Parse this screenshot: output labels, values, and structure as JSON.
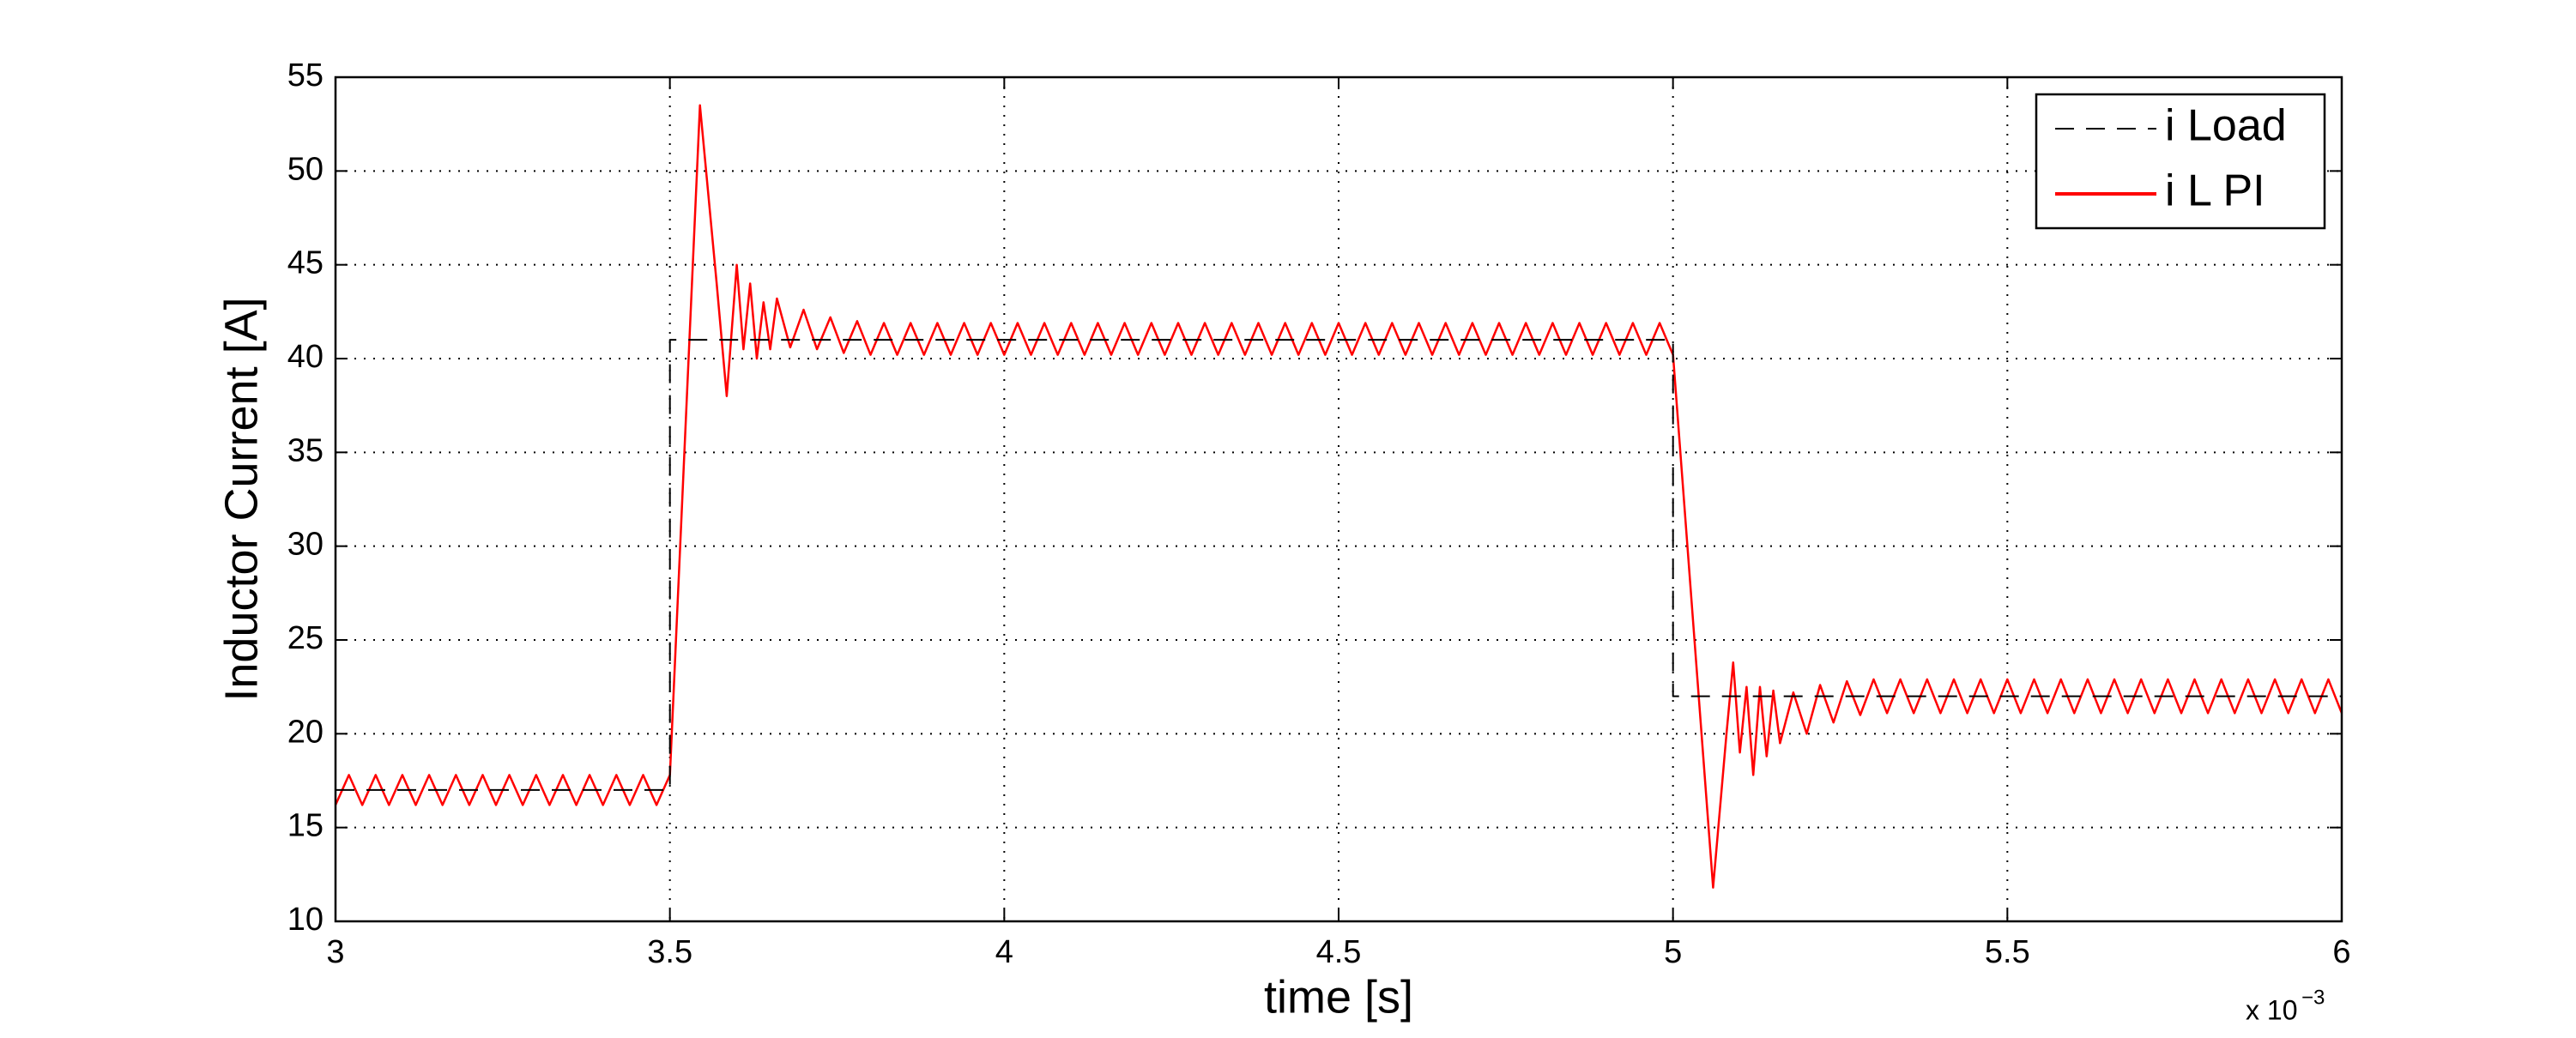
{
  "chart_data": {
    "type": "line",
    "xlabel": "time [s]",
    "ylabel": "Inductor Current [A]",
    "x_multiplier": "x 10",
    "x_multiplier_exponent": "−3",
    "xlim": [
      3,
      6
    ],
    "xticks": [
      3,
      3.5,
      4,
      4.5,
      5,
      5.5,
      6
    ],
    "ylim": [
      10,
      55
    ],
    "yticks": [
      10,
      15,
      20,
      25,
      30,
      35,
      40,
      45,
      50,
      55
    ],
    "grid": true,
    "legend": "upper right",
    "series": [
      {
        "name": "i Load",
        "color": "#000000",
        "line_style": "dashed",
        "x": [
          3,
          3.5,
          3.5,
          5,
          5,
          6
        ],
        "values": [
          17,
          17,
          41,
          41,
          22,
          22
        ]
      },
      {
        "name": "i L PI",
        "color": "#ff0000",
        "line_style": "solid",
        "x": [
          3,
          3.02,
          3.04,
          3.06,
          3.08,
          3.1,
          3.12,
          3.14,
          3.16,
          3.18,
          3.2,
          3.22,
          3.24,
          3.26,
          3.28,
          3.3,
          3.32,
          3.34,
          3.36,
          3.38,
          3.4,
          3.42,
          3.44,
          3.46,
          3.48,
          3.5,
          3.545,
          3.57,
          3.585,
          3.6,
          3.61,
          3.62,
          3.63,
          3.64,
          3.65,
          3.66,
          3.68,
          3.7,
          3.72,
          3.74,
          3.76,
          3.78,
          3.8,
          3.82,
          3.84,
          3.86,
          3.88,
          3.9,
          3.92,
          3.94,
          3.96,
          3.98,
          4,
          4.02,
          4.04,
          4.06,
          4.08,
          4.1,
          4.12,
          4.14,
          4.16,
          4.18,
          4.2,
          4.22,
          4.24,
          4.26,
          4.28,
          4.3,
          4.32,
          4.34,
          4.36,
          4.38,
          4.4,
          4.42,
          4.44,
          4.46,
          4.48,
          4.5,
          4.52,
          4.54,
          4.56,
          4.58,
          4.6,
          4.62,
          4.64,
          4.66,
          4.68,
          4.7,
          4.72,
          4.74,
          4.76,
          4.78,
          4.8,
          4.82,
          4.84,
          4.86,
          4.88,
          4.9,
          4.92,
          4.94,
          4.96,
          4.98,
          5,
          5.06,
          5.08,
          5.09,
          5.1,
          5.11,
          5.12,
          5.13,
          5.14,
          5.15,
          5.16,
          5.18,
          5.2,
          5.22,
          5.24,
          5.26,
          5.28,
          5.3,
          5.32,
          5.34,
          5.36,
          5.38,
          5.4,
          5.42,
          5.44,
          5.46,
          5.48,
          5.5,
          5.52,
          5.54,
          5.56,
          5.58,
          5.6,
          5.62,
          5.64,
          5.66,
          5.68,
          5.7,
          5.72,
          5.74,
          5.76,
          5.78,
          5.8,
          5.82,
          5.84,
          5.86,
          5.88,
          5.9,
          5.92,
          5.94,
          5.96,
          5.98,
          6
        ],
        "values": [
          16.2,
          17.8,
          16.2,
          17.8,
          16.2,
          17.8,
          16.2,
          17.8,
          16.2,
          17.8,
          16.2,
          17.8,
          16.2,
          17.8,
          16.2,
          17.8,
          16.2,
          17.8,
          16.2,
          17.8,
          16.2,
          17.8,
          16.2,
          17.8,
          16.2,
          17.8,
          53.5,
          44,
          38,
          45,
          40.5,
          44,
          40,
          43,
          40.5,
          43.2,
          40.6,
          42.6,
          40.5,
          42.2,
          40.3,
          42,
          40.2,
          41.9,
          40.2,
          41.9,
          40.2,
          41.9,
          40.2,
          41.9,
          40.2,
          41.9,
          40.2,
          41.9,
          40.2,
          41.9,
          40.2,
          41.9,
          40.2,
          41.9,
          40.2,
          41.9,
          40.2,
          41.9,
          40.2,
          41.9,
          40.2,
          41.9,
          40.2,
          41.9,
          40.2,
          41.9,
          40.2,
          41.9,
          40.2,
          41.9,
          40.2,
          41.9,
          40.2,
          41.9,
          40.2,
          41.9,
          40.2,
          41.9,
          40.2,
          41.9,
          40.2,
          41.9,
          40.2,
          41.9,
          40.2,
          41.9,
          40.2,
          41.9,
          40.2,
          41.9,
          40.2,
          41.9,
          40.2,
          41.9,
          40.2,
          41.9,
          40.2,
          11.8,
          20,
          23.8,
          19,
          22.5,
          17.8,
          22.5,
          18.8,
          22.3,
          19.5,
          22.2,
          20,
          22.6,
          20.6,
          22.8,
          21,
          22.9,
          21.1,
          22.9,
          21.1,
          22.9,
          21.1,
          22.9,
          21.1,
          22.9,
          21.1,
          22.9,
          21.1,
          22.9,
          21.1,
          22.9,
          21.1,
          22.9,
          21.1,
          22.9,
          21.1,
          22.9,
          21.1,
          22.9,
          21.1,
          22.9,
          21.1,
          22.9,
          21.1,
          22.9,
          21.1,
          22.9,
          21.1,
          22.9,
          21.1,
          22.9,
          21.1
        ]
      }
    ]
  }
}
